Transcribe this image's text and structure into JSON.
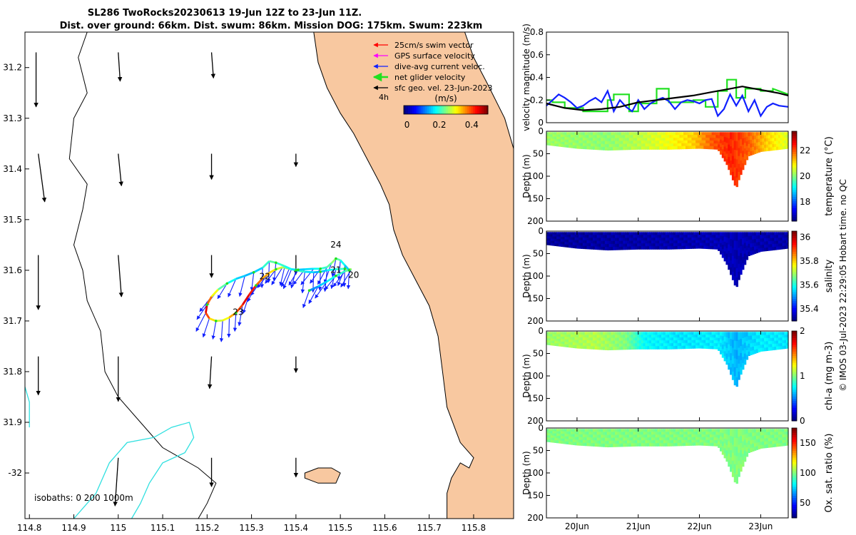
{
  "title": {
    "line1": "SL286 TwoRocks20230613 19-Jun 12Z to 23-Jun 11Z.",
    "line2": "Dist. over ground: 66km. Dist. swum: 86km. Mission DOG: 175km. Swum: 223km"
  },
  "footer_text": "© IMOS 03-Jul-2023 22:29:05 Hobart time. no QC",
  "colors": {
    "land": "#f8c8a0",
    "swim": "#ff0000",
    "gps": "#ff00ff",
    "current": "#1020ff",
    "net": "#20e020",
    "sfc": "#000000",
    "isobath": "#30e0e0"
  },
  "chart_data": [
    {
      "type": "map",
      "name": "glider-track-map",
      "xlabel": "Longitude",
      "ylabel": "Latitude",
      "xlim": [
        114.79,
        115.89
      ],
      "ylim": [
        -32.09,
        -31.13
      ],
      "x_ticks": [
        "114.8",
        "114.9",
        "115",
        "115.1",
        "115.2",
        "115.3",
        "115.4",
        "115.5",
        "115.6",
        "115.7",
        "115.8"
      ],
      "x_tick_values": [
        114.8,
        114.9,
        115.0,
        115.1,
        115.2,
        115.3,
        115.4,
        115.5,
        115.6,
        115.7,
        115.8
      ],
      "y_ticks": [
        "31.2",
        "31.3",
        "31.4",
        "31.5",
        "31.6",
        "31.7",
        "31.8",
        "31.9",
        "-32"
      ],
      "y_tick_values": [
        -31.2,
        -31.3,
        -31.4,
        -31.5,
        -31.6,
        -31.7,
        -31.8,
        -31.9,
        -32.0
      ],
      "legend": {
        "items": [
          {
            "label": "25cm/s swim vector",
            "color_key": "swim"
          },
          {
            "label": "GPS surface velocity",
            "color_key": "gps"
          },
          {
            "label": "dive-avg current veloc.",
            "color_key": "current"
          },
          {
            "label": "net glider velocity",
            "color_key": "net"
          },
          {
            "label": "sfc geo. vel. 23-Jun-2023",
            "color_key": "sfc"
          }
        ],
        "ref_label": "4h",
        "colorbar_title": "(m/s)",
        "colorbar_ticks": [
          "0",
          "0.2",
          "0.4"
        ],
        "colorbar_tick_values": [
          0,
          0.2,
          0.4
        ],
        "colorbar_range": [
          -0.02,
          0.5
        ]
      },
      "day_labels": [
        {
          "label": "24",
          "lon": 115.49,
          "lat": -31.555
        },
        {
          "label": "21",
          "lon": 115.49,
          "lat": -31.605
        },
        {
          "label": "20",
          "lon": 115.53,
          "lat": -31.615
        },
        {
          "label": "22",
          "lon": 115.33,
          "lat": -31.618
        },
        {
          "label": "23",
          "lon": 115.27,
          "lat": -31.688
        }
      ],
      "isobath_label": "isobaths: 0   200  1000m",
      "track": [
        [
          115.43,
          -31.64
        ],
        [
          115.45,
          -31.632
        ],
        [
          115.47,
          -31.622
        ],
        [
          115.49,
          -31.611
        ],
        [
          115.51,
          -31.602
        ],
        [
          115.525,
          -31.598
        ],
        [
          115.51,
          -31.597
        ],
        [
          115.49,
          -31.598
        ],
        [
          115.47,
          -31.6
        ],
        [
          115.455,
          -31.603
        ],
        [
          115.44,
          -31.604
        ],
        [
          115.42,
          -31.603
        ],
        [
          115.4,
          -31.6
        ],
        [
          115.385,
          -31.597
        ],
        [
          115.37,
          -31.594
        ],
        [
          115.355,
          -31.598
        ],
        [
          115.34,
          -31.605
        ],
        [
          115.325,
          -31.616
        ],
        [
          115.31,
          -31.63
        ],
        [
          115.295,
          -31.648
        ],
        [
          115.28,
          -31.668
        ],
        [
          115.265,
          -31.684
        ],
        [
          115.25,
          -31.693
        ],
        [
          115.235,
          -31.699
        ],
        [
          115.22,
          -31.7
        ],
        [
          115.205,
          -31.695
        ],
        [
          115.197,
          -31.684
        ],
        [
          115.2,
          -31.668
        ],
        [
          115.21,
          -31.652
        ],
        [
          115.225,
          -31.638
        ],
        [
          115.245,
          -31.626
        ],
        [
          115.265,
          -31.617
        ],
        [
          115.285,
          -31.611
        ],
        [
          115.305,
          -31.604
        ],
        [
          115.325,
          -31.595
        ],
        [
          115.34,
          -31.582
        ],
        [
          115.355,
          -31.585
        ],
        [
          115.375,
          -31.592
        ],
        [
          115.39,
          -31.598
        ],
        [
          115.405,
          -31.599
        ],
        [
          115.42,
          -31.598
        ],
        [
          115.44,
          -31.597
        ],
        [
          115.455,
          -31.597
        ],
        [
          115.47,
          -31.594
        ],
        [
          115.48,
          -31.586
        ],
        [
          115.49,
          -31.577
        ],
        [
          115.5,
          -31.58
        ],
        [
          115.51,
          -31.59
        ],
        [
          115.52,
          -31.6
        ]
      ],
      "track_speed": [
        0.1,
        0.12,
        0.15,
        0.18,
        0.2,
        0.22,
        0.25,
        0.2,
        0.18,
        0.15,
        0.14,
        0.16,
        0.2,
        0.22,
        0.25,
        0.28,
        0.32,
        0.35,
        0.38,
        0.42,
        0.45,
        0.4,
        0.35,
        0.3,
        0.28,
        0.32,
        0.4,
        0.45,
        0.38,
        0.3,
        0.22,
        0.18,
        0.15,
        0.14,
        0.15,
        0.2,
        0.22,
        0.2,
        0.18,
        0.16,
        0.15,
        0.16,
        0.18,
        0.2,
        0.22,
        0.25,
        0.22,
        0.18,
        0.15
      ],
      "sfc_arrows": [
        {
          "lon": 114.815,
          "lat": -31.17,
          "u": 0.0,
          "v": -0.085
        },
        {
          "lon": 114.82,
          "lat": -31.37,
          "u": 0.01,
          "v": -0.075
        },
        {
          "lon": 114.82,
          "lat": -31.57,
          "u": 0.0,
          "v": -0.085
        },
        {
          "lon": 114.82,
          "lat": -31.77,
          "u": 0.0,
          "v": -0.06
        },
        {
          "lon": 115.0,
          "lat": -31.17,
          "u": 0.003,
          "v": -0.045
        },
        {
          "lon": 115.0,
          "lat": -31.37,
          "u": 0.005,
          "v": -0.05
        },
        {
          "lon": 115.0,
          "lat": -31.57,
          "u": 0.005,
          "v": -0.065
        },
        {
          "lon": 115.0,
          "lat": -31.77,
          "u": 0.0,
          "v": -0.07
        },
        {
          "lon": 115.0,
          "lat": -31.97,
          "u": -0.005,
          "v": -0.075
        },
        {
          "lon": 115.21,
          "lat": -31.17,
          "u": 0.003,
          "v": -0.04
        },
        {
          "lon": 115.21,
          "lat": -31.37,
          "u": 0.0,
          "v": -0.04
        },
        {
          "lon": 115.21,
          "lat": -31.57,
          "u": 0.0,
          "v": -0.035
        },
        {
          "lon": 115.21,
          "lat": -31.77,
          "u": -0.003,
          "v": -0.05
        },
        {
          "lon": 115.21,
          "lat": -31.97,
          "u": 0.0,
          "v": -0.045
        },
        {
          "lon": 115.4,
          "lat": -31.37,
          "u": 0.0,
          "v": -0.02
        },
        {
          "lon": 115.4,
          "lat": -31.57,
          "u": 0.0,
          "v": -0.03
        },
        {
          "lon": 115.4,
          "lat": -31.77,
          "u": 0.0,
          "v": -0.025
        },
        {
          "lon": 115.4,
          "lat": -31.97,
          "u": 0.0,
          "v": -0.03
        }
      ]
    },
    {
      "type": "line",
      "name": "velocity-magnitude",
      "ylabel": "velocity magnitude (m/s)",
      "ylim": [
        0,
        0.8
      ],
      "y_ticks": [
        "0",
        "0.2",
        "0.4",
        "0.6",
        "0.8"
      ],
      "y_tick_values": [
        0,
        0.2,
        0.4,
        0.6,
        0.8
      ],
      "xlim": [
        19.5,
        23.45
      ],
      "series": [
        {
          "name": "net glider velocity",
          "color_key": "net",
          "x": [
            19.5,
            19.6,
            19.6,
            19.8,
            19.8,
            20.1,
            20.1,
            20.5,
            20.5,
            20.6,
            20.6,
            20.85,
            20.85,
            21.0,
            21.0,
            21.3,
            21.3,
            21.5,
            21.5,
            21.9,
            21.9,
            22.1,
            22.1,
            22.3,
            22.3,
            22.45,
            22.45,
            22.6,
            22.6,
            22.75,
            22.75,
            23.0,
            23.0,
            23.2,
            23.2,
            23.45
          ],
          "y": [
            0.2,
            0.2,
            0.18,
            0.18,
            0.13,
            0.13,
            0.1,
            0.1,
            0.2,
            0.2,
            0.25,
            0.25,
            0.1,
            0.1,
            0.17,
            0.17,
            0.3,
            0.3,
            0.18,
            0.18,
            0.2,
            0.2,
            0.14,
            0.14,
            0.28,
            0.28,
            0.38,
            0.38,
            0.22,
            0.22,
            0.3,
            0.3,
            0.28,
            0.28,
            0.3,
            0.25
          ]
        },
        {
          "name": "dive-avg current veloc.",
          "color_key": "current",
          "x": [
            19.5,
            19.6,
            19.7,
            19.8,
            19.9,
            20.0,
            20.1,
            20.2,
            20.3,
            20.4,
            20.5,
            20.55,
            20.6,
            20.7,
            20.8,
            20.9,
            21.0,
            21.1,
            21.2,
            21.3,
            21.4,
            21.5,
            21.6,
            21.7,
            21.8,
            21.9,
            22.0,
            22.1,
            22.2,
            22.3,
            22.4,
            22.5,
            22.6,
            22.7,
            22.8,
            22.9,
            23.0,
            23.1,
            23.2,
            23.3,
            23.45
          ],
          "y": [
            0.15,
            0.2,
            0.25,
            0.22,
            0.18,
            0.13,
            0.15,
            0.19,
            0.22,
            0.18,
            0.28,
            0.2,
            0.1,
            0.2,
            0.14,
            0.1,
            0.2,
            0.12,
            0.17,
            0.2,
            0.22,
            0.19,
            0.12,
            0.18,
            0.2,
            0.19,
            0.17,
            0.2,
            0.21,
            0.06,
            0.12,
            0.25,
            0.15,
            0.24,
            0.1,
            0.2,
            0.06,
            0.14,
            0.17,
            0.15,
            0.14
          ]
        },
        {
          "name": "sfc geo. vel. 23-Jun-2023",
          "color_key": "sfc",
          "x": [
            19.5,
            19.8,
            20.1,
            20.4,
            20.7,
            21.0,
            21.3,
            21.6,
            21.9,
            22.2,
            22.5,
            22.7,
            22.9,
            23.1,
            23.3,
            23.45
          ],
          "y": [
            0.17,
            0.13,
            0.11,
            0.12,
            0.14,
            0.18,
            0.2,
            0.22,
            0.24,
            0.27,
            0.3,
            0.32,
            0.3,
            0.28,
            0.26,
            0.24
          ]
        }
      ]
    },
    {
      "type": "heatmap",
      "name": "temperature-section",
      "ylabel": "Depth (m)",
      "colorbar_label": "temperature (°C)",
      "ylim": [
        200,
        0
      ],
      "y_ticks": [
        "0",
        "50",
        "100",
        "150",
        "200"
      ],
      "y_tick_values": [
        0,
        50,
        100,
        150,
        200
      ],
      "clim": [
        16.5,
        23.5
      ],
      "colorbar_ticks": [
        "18",
        "20",
        "22"
      ],
      "colorbar_tick_values": [
        18,
        20,
        22
      ],
      "xlim": [
        19.5,
        23.45
      ],
      "x_ticks": [
        "20Jun",
        "21Jun",
        "22Jun",
        "23Jun"
      ],
      "x_tick_values": [
        20,
        21,
        22,
        23
      ],
      "bottom_depth": {
        "x": [
          19.5,
          20.0,
          20.5,
          21.0,
          21.5,
          22.0,
          22.3,
          22.45,
          22.55,
          22.6,
          22.65,
          22.8,
          23.0,
          23.2,
          23.45
        ],
        "y": [
          30,
          38,
          42,
          40,
          40,
          38,
          40,
          75,
          110,
          128,
          105,
          55,
          45,
          42,
          38
        ]
      },
      "profile": [
        {
          "x": 19.5,
          "v": 20.2
        },
        {
          "x": 20.5,
          "v": 20.1
        },
        {
          "x": 21.0,
          "v": 20.4
        },
        {
          "x": 21.5,
          "v": 20.8
        },
        {
          "x": 21.9,
          "v": 21.2
        },
        {
          "x": 22.2,
          "v": 22.0
        },
        {
          "x": 22.5,
          "v": 22.4
        },
        {
          "x": 22.8,
          "v": 22.0
        },
        {
          "x": 23.1,
          "v": 21.2
        },
        {
          "x": 23.45,
          "v": 20.6
        }
      ]
    },
    {
      "type": "heatmap",
      "name": "salinity-section",
      "ylabel": "Depth (m)",
      "colorbar_label": "salinity",
      "ylim": [
        200,
        0
      ],
      "y_ticks": [
        "0",
        "50",
        "100",
        "150",
        "200"
      ],
      "y_tick_values": [
        0,
        50,
        100,
        150,
        200
      ],
      "clim": [
        35.3,
        36.05
      ],
      "colorbar_ticks": [
        "35.4",
        "35.6",
        "35.8",
        "36"
      ],
      "colorbar_tick_values": [
        35.4,
        35.6,
        35.8,
        36
      ],
      "xlim": [
        19.5,
        23.45
      ],
      "x_ticks": [
        "20Jun",
        "21Jun",
        "22Jun",
        "23Jun"
      ],
      "x_tick_values": [
        20,
        21,
        22,
        23
      ],
      "bottom_depth": {
        "x": [
          19.5,
          20.0,
          20.5,
          21.0,
          21.5,
          22.0,
          22.3,
          22.45,
          22.55,
          22.6,
          22.65,
          22.8,
          23.0,
          23.2,
          23.45
        ],
        "y": [
          30,
          38,
          42,
          40,
          40,
          38,
          40,
          75,
          110,
          128,
          105,
          55,
          45,
          42,
          38
        ]
      },
      "profile": [
        {
          "x": 19.5,
          "v": 35.32
        },
        {
          "x": 21.0,
          "v": 35.33
        },
        {
          "x": 22.5,
          "v": 35.34
        },
        {
          "x": 23.45,
          "v": 35.33
        }
      ]
    },
    {
      "type": "heatmap",
      "name": "chlorophyll-section",
      "ylabel": "Depth (m)",
      "colorbar_label": "chl-a (mg m-3)",
      "ylim": [
        200,
        0
      ],
      "y_ticks": [
        "0",
        "50",
        "100",
        "150",
        "200"
      ],
      "y_tick_values": [
        0,
        50,
        100,
        150,
        200
      ],
      "clim": [
        0,
        2
      ],
      "colorbar_ticks": [
        "0",
        "1",
        "2"
      ],
      "colorbar_tick_values": [
        0,
        1,
        2
      ],
      "xlim": [
        19.5,
        23.45
      ],
      "x_ticks": [
        "20Jun",
        "21Jun",
        "22Jun",
        "23Jun"
      ],
      "x_tick_values": [
        20,
        21,
        22,
        23
      ],
      "bottom_depth": {
        "x": [
          19.5,
          20.0,
          20.5,
          21.0,
          21.5,
          22.0,
          22.3,
          22.45,
          22.55,
          22.6,
          22.65,
          22.8,
          23.0,
          23.2,
          23.45
        ],
        "y": [
          30,
          38,
          42,
          40,
          40,
          38,
          40,
          75,
          110,
          128,
          105,
          55,
          45,
          42,
          38
        ]
      },
      "profile": [
        {
          "x": 19.5,
          "v": 1.05
        },
        {
          "x": 20.3,
          "v": 1.1
        },
        {
          "x": 20.8,
          "v": 1.0
        },
        {
          "x": 21.1,
          "v": 0.75
        },
        {
          "x": 21.7,
          "v": 0.7
        },
        {
          "x": 22.3,
          "v": 0.72
        },
        {
          "x": 22.6,
          "v": 0.6
        },
        {
          "x": 23.0,
          "v": 0.72
        },
        {
          "x": 23.45,
          "v": 0.7
        }
      ]
    },
    {
      "type": "heatmap",
      "name": "oxygen-section",
      "ylabel": "Depth (m)",
      "colorbar_label": "Ox. sat. ratio (%)",
      "ylim": [
        200,
        0
      ],
      "y_ticks": [
        "0",
        "50",
        "100",
        "150",
        "200"
      ],
      "y_tick_values": [
        0,
        50,
        100,
        150,
        200
      ],
      "clim": [
        25,
        175
      ],
      "colorbar_ticks": [
        "50",
        "100",
        "150"
      ],
      "colorbar_tick_values": [
        50,
        100,
        150
      ],
      "xlim": [
        19.5,
        23.45
      ],
      "x_ticks": [
        "20Jun",
        "21Jun",
        "22Jun",
        "23Jun"
      ],
      "x_tick_values": [
        20,
        21,
        22,
        23
      ],
      "bottom_depth": {
        "x": [
          19.5,
          20.0,
          20.5,
          21.0,
          21.5,
          22.0,
          22.3,
          22.45,
          22.55,
          22.6,
          22.65,
          22.8,
          23.0,
          23.2,
          23.45
        ],
        "y": [
          30,
          38,
          42,
          40,
          40,
          38,
          40,
          75,
          110,
          128,
          105,
          55,
          45,
          42,
          38
        ]
      },
      "profile": [
        {
          "x": 19.5,
          "v": 100
        },
        {
          "x": 23.45,
          "v": 100
        }
      ]
    }
  ]
}
